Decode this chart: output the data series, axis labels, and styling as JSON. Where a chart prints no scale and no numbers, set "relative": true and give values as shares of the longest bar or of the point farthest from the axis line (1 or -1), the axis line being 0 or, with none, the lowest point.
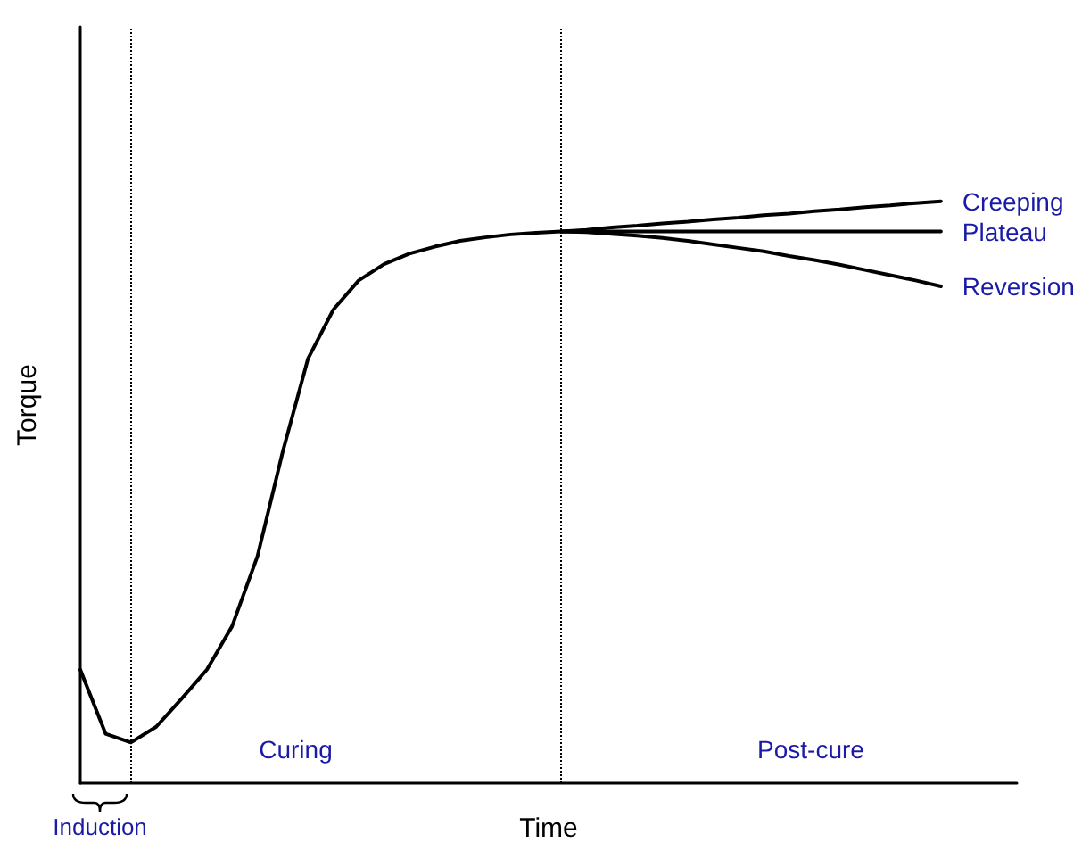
{
  "chart_data": {
    "type": "line",
    "relative": true,
    "xlabel": "Time",
    "ylabel": "Torque",
    "marker": "none",
    "line_style": "solid",
    "categories": [
      null,
      null,
      null,
      null,
      null,
      null,
      null,
      null,
      null,
      null,
      null,
      null,
      null,
      null,
      null,
      null,
      null,
      null,
      null,
      null,
      null,
      null,
      null,
      null,
      null,
      null,
      null,
      null,
      null,
      null,
      null,
      null,
      null,
      null,
      null,
      null,
      null,
      null
    ],
    "series": [
      {
        "name": "Creeping",
        "color": "#000000",
        "values": [
          null,
          null,
          null,
          null,
          null,
          null,
          null,
          null,
          null,
          null,
          null,
          null,
          null,
          null,
          null,
          null,
          null,
          null,
          null,
          0.948,
          0.951,
          0.955,
          0.958,
          0.962,
          0.965,
          0.969,
          0.972,
          0.976,
          0.979,
          0.983,
          0.986,
          0.99,
          0.993,
          0.997,
          1,
          null,
          null,
          null
        ]
      },
      {
        "name": "Plateau",
        "color": "#000000",
        "values": [
          0.195,
          0.085,
          0.07,
          0.097,
          0.145,
          0.195,
          0.27,
          0.39,
          0.57,
          0.73,
          0.814,
          0.864,
          0.892,
          0.91,
          0.922,
          0.932,
          0.938,
          0.943,
          0.946,
          0.948,
          0.948,
          0.948,
          0.948,
          0.948,
          0.948,
          0.948,
          0.948,
          0.948,
          0.948,
          0.948,
          0.948,
          0.948,
          0.948,
          0.948,
          0.948,
          null,
          null,
          null
        ]
      },
      {
        "name": "Reversion",
        "color": "#000000",
        "values": [
          null,
          null,
          null,
          null,
          null,
          null,
          null,
          null,
          null,
          null,
          null,
          null,
          null,
          null,
          null,
          null,
          null,
          null,
          null,
          0.948,
          0.947,
          0.944,
          0.941,
          0.937,
          0.932,
          0.926,
          0.92,
          0.914,
          0.906,
          0.899,
          0.891,
          0.882,
          0.873,
          0.864,
          0.854,
          null,
          null,
          null
        ]
      }
    ],
    "annotations": [
      "Induction",
      "Curing",
      "Post-cure"
    ]
  }
}
